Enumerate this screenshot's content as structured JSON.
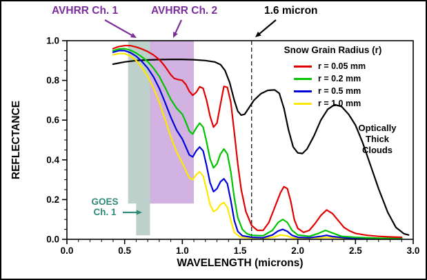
{
  "figure": {
    "background": "#ffffff",
    "border_color": "#000000"
  },
  "annotations": {
    "avhrr_ch1": {
      "label": "AVHRR Ch. 1",
      "color": "#7b2d9b"
    },
    "avhrr_ch2": {
      "label": "AVHRR Ch. 2",
      "color": "#7b2d9b"
    },
    "goes_ch1": {
      "line1": "GOES",
      "line2": "Ch. 1",
      "color": "#2f8a78"
    },
    "clouds": {
      "line1": "Optically",
      "line2": "Thick",
      "line3": "Clouds",
      "color": "#000000"
    }
  },
  "legend": {
    "title": "Snow Grain Radius (r)",
    "position": "upper right",
    "entries": [
      {
        "label": "r = 0.05 mm",
        "color": "#e10000"
      },
      {
        "label": "r = 0.2 mm",
        "color": "#00c400"
      },
      {
        "label": "r = 0.5 mm",
        "color": "#0000d8"
      },
      {
        "label": "r = 1.0 mm",
        "color": "#ffe800"
      }
    ]
  },
  "chart_data": {
    "type": "line",
    "title": "",
    "xlabel": "WAVELENGTH (microns)",
    "ylabel": "REFLECTANCE",
    "xlim": [
      0.0,
      3.0
    ],
    "ylim": [
      0.0,
      1.0
    ],
    "grid": false,
    "x_ticks": [
      "0.0",
      "0.5",
      "1.0",
      "1.5",
      "2.0",
      "2.5",
      "3.0"
    ],
    "y_ticks": [
      "0.0",
      "0.2",
      "0.4",
      "0.6",
      "0.8",
      "1.0"
    ],
    "reference_line": {
      "x": 1.6,
      "style": "dashed",
      "label": "1.6 micron"
    },
    "bands": [
      {
        "data_name": "avhrr-ch1-goes-ch1-band",
        "x0": 0.53,
        "x1": 0.72,
        "y0": 0.18,
        "y1": 1.0,
        "color": "#447766",
        "opacity": 0.35
      },
      {
        "data_name": "goes-ch1-band-extension",
        "x0": 0.6,
        "x1": 0.72,
        "y0": 0.02,
        "y1": 0.18,
        "color": "#447766",
        "opacity": 0.35
      },
      {
        "data_name": "avhrr-ch2-band",
        "x0": 0.72,
        "x1": 1.1,
        "y0": 0.18,
        "y1": 1.0,
        "color": "#9955bb",
        "opacity": 0.45
      }
    ],
    "series": [
      {
        "id": "r-0-05mm",
        "name": "r = 0.05 mm",
        "color": "#e10000",
        "points": [
          [
            0.4,
            0.96
          ],
          [
            0.45,
            0.97
          ],
          [
            0.5,
            0.975
          ],
          [
            0.55,
            0.975
          ],
          [
            0.6,
            0.968
          ],
          [
            0.65,
            0.958
          ],
          [
            0.7,
            0.945
          ],
          [
            0.75,
            0.928
          ],
          [
            0.8,
            0.905
          ],
          [
            0.83,
            0.885
          ],
          [
            0.86,
            0.862
          ],
          [
            0.9,
            0.828
          ],
          [
            0.93,
            0.81
          ],
          [
            0.96,
            0.805
          ],
          [
            1.0,
            0.8
          ],
          [
            1.03,
            0.78
          ],
          [
            1.06,
            0.745
          ],
          [
            1.09,
            0.725
          ],
          [
            1.12,
            0.74
          ],
          [
            1.15,
            0.768
          ],
          [
            1.18,
            0.76
          ],
          [
            1.21,
            0.7
          ],
          [
            1.24,
            0.62
          ],
          [
            1.27,
            0.565
          ],
          [
            1.3,
            0.585
          ],
          [
            1.33,
            0.68
          ],
          [
            1.36,
            0.77
          ],
          [
            1.39,
            0.765
          ],
          [
            1.42,
            0.69
          ],
          [
            1.45,
            0.54
          ],
          [
            1.48,
            0.38
          ],
          [
            1.51,
            0.25
          ],
          [
            1.55,
            0.14
          ],
          [
            1.6,
            0.07
          ],
          [
            1.65,
            0.045
          ],
          [
            1.7,
            0.045
          ],
          [
            1.75,
            0.085
          ],
          [
            1.8,
            0.16
          ],
          [
            1.85,
            0.235
          ],
          [
            1.88,
            0.265
          ],
          [
            1.91,
            0.255
          ],
          [
            1.94,
            0.19
          ],
          [
            1.97,
            0.1
          ],
          [
            2.0,
            0.055
          ],
          [
            2.05,
            0.035
          ],
          [
            2.1,
            0.045
          ],
          [
            2.15,
            0.08
          ],
          [
            2.2,
            0.12
          ],
          [
            2.25,
            0.148
          ],
          [
            2.3,
            0.13
          ],
          [
            2.35,
            0.095
          ],
          [
            2.4,
            0.06
          ],
          [
            2.45,
            0.042
          ],
          [
            2.5,
            0.03
          ],
          [
            2.6,
            0.02
          ],
          [
            2.7,
            0.015
          ],
          [
            2.8,
            0.012
          ],
          [
            2.9,
            0.01
          ]
        ]
      },
      {
        "id": "r-0-2mm",
        "name": "r = 0.2 mm",
        "color": "#00c400",
        "points": [
          [
            0.4,
            0.95
          ],
          [
            0.45,
            0.958
          ],
          [
            0.5,
            0.96
          ],
          [
            0.55,
            0.952
          ],
          [
            0.6,
            0.938
          ],
          [
            0.65,
            0.918
          ],
          [
            0.7,
            0.895
          ],
          [
            0.75,
            0.862
          ],
          [
            0.8,
            0.82
          ],
          [
            0.85,
            0.765
          ],
          [
            0.9,
            0.705
          ],
          [
            0.95,
            0.66
          ],
          [
            1.0,
            0.63
          ],
          [
            1.03,
            0.59
          ],
          [
            1.06,
            0.545
          ],
          [
            1.09,
            0.53
          ],
          [
            1.12,
            0.56
          ],
          [
            1.15,
            0.585
          ],
          [
            1.18,
            0.565
          ],
          [
            1.21,
            0.49
          ],
          [
            1.24,
            0.405
          ],
          [
            1.27,
            0.36
          ],
          [
            1.3,
            0.38
          ],
          [
            1.33,
            0.43
          ],
          [
            1.36,
            0.455
          ],
          [
            1.39,
            0.43
          ],
          [
            1.42,
            0.34
          ],
          [
            1.45,
            0.21
          ],
          [
            1.48,
            0.11
          ],
          [
            1.52,
            0.05
          ],
          [
            1.56,
            0.028
          ],
          [
            1.6,
            0.02
          ],
          [
            1.7,
            0.018
          ],
          [
            1.78,
            0.045
          ],
          [
            1.83,
            0.085
          ],
          [
            1.87,
            0.1
          ],
          [
            1.91,
            0.085
          ],
          [
            1.95,
            0.045
          ],
          [
            2.0,
            0.022
          ],
          [
            2.1,
            0.015
          ],
          [
            2.18,
            0.03
          ],
          [
            2.24,
            0.045
          ],
          [
            2.3,
            0.032
          ],
          [
            2.38,
            0.015
          ],
          [
            2.5,
            0.01
          ],
          [
            2.7,
            0.006
          ],
          [
            2.9,
            0.005
          ]
        ]
      },
      {
        "id": "r-0-5mm",
        "name": "r = 0.5 mm",
        "color": "#0000d8",
        "points": [
          [
            0.4,
            0.942
          ],
          [
            0.45,
            0.95
          ],
          [
            0.5,
            0.95
          ],
          [
            0.55,
            0.94
          ],
          [
            0.6,
            0.922
          ],
          [
            0.65,
            0.895
          ],
          [
            0.7,
            0.862
          ],
          [
            0.75,
            0.818
          ],
          [
            0.8,
            0.76
          ],
          [
            0.85,
            0.69
          ],
          [
            0.9,
            0.615
          ],
          [
            0.95,
            0.55
          ],
          [
            1.0,
            0.505
          ],
          [
            1.03,
            0.465
          ],
          [
            1.06,
            0.425
          ],
          [
            1.09,
            0.415
          ],
          [
            1.12,
            0.445
          ],
          [
            1.15,
            0.465
          ],
          [
            1.18,
            0.445
          ],
          [
            1.21,
            0.37
          ],
          [
            1.24,
            0.285
          ],
          [
            1.27,
            0.24
          ],
          [
            1.3,
            0.255
          ],
          [
            1.33,
            0.29
          ],
          [
            1.36,
            0.305
          ],
          [
            1.39,
            0.28
          ],
          [
            1.42,
            0.195
          ],
          [
            1.45,
            0.095
          ],
          [
            1.48,
            0.04
          ],
          [
            1.52,
            0.018
          ],
          [
            1.6,
            0.01
          ],
          [
            1.7,
            0.008
          ],
          [
            1.78,
            0.022
          ],
          [
            1.83,
            0.042
          ],
          [
            1.87,
            0.05
          ],
          [
            1.91,
            0.04
          ],
          [
            1.95,
            0.02
          ],
          [
            2.0,
            0.01
          ],
          [
            2.1,
            0.008
          ],
          [
            2.2,
            0.015
          ],
          [
            2.25,
            0.02
          ],
          [
            2.3,
            0.014
          ],
          [
            2.4,
            0.008
          ],
          [
            2.5,
            0.005
          ],
          [
            2.7,
            0.004
          ],
          [
            2.9,
            0.003
          ]
        ]
      },
      {
        "id": "r-1-0mm",
        "name": "r = 1.0 mm",
        "color": "#ffe800",
        "points": [
          [
            0.4,
            0.928
          ],
          [
            0.45,
            0.935
          ],
          [
            0.5,
            0.935
          ],
          [
            0.55,
            0.922
          ],
          [
            0.6,
            0.9
          ],
          [
            0.65,
            0.865
          ],
          [
            0.7,
            0.82
          ],
          [
            0.75,
            0.762
          ],
          [
            0.8,
            0.69
          ],
          [
            0.85,
            0.605
          ],
          [
            0.9,
            0.515
          ],
          [
            0.95,
            0.44
          ],
          [
            1.0,
            0.385
          ],
          [
            1.03,
            0.345
          ],
          [
            1.06,
            0.31
          ],
          [
            1.09,
            0.3
          ],
          [
            1.12,
            0.325
          ],
          [
            1.15,
            0.34
          ],
          [
            1.18,
            0.32
          ],
          [
            1.21,
            0.25
          ],
          [
            1.24,
            0.175
          ],
          [
            1.27,
            0.14
          ],
          [
            1.3,
            0.15
          ],
          [
            1.33,
            0.175
          ],
          [
            1.36,
            0.185
          ],
          [
            1.39,
            0.16
          ],
          [
            1.42,
            0.095
          ],
          [
            1.45,
            0.035
          ],
          [
            1.5,
            0.012
          ],
          [
            1.6,
            0.006
          ],
          [
            1.7,
            0.005
          ],
          [
            1.8,
            0.012
          ],
          [
            1.85,
            0.022
          ],
          [
            1.9,
            0.018
          ],
          [
            1.95,
            0.008
          ],
          [
            2.0,
            0.005
          ],
          [
            2.2,
            0.008
          ],
          [
            2.25,
            0.01
          ],
          [
            2.3,
            0.008
          ],
          [
            2.5,
            0.004
          ],
          [
            2.9,
            0.003
          ]
        ]
      },
      {
        "id": "optically-thick-clouds",
        "name": "Optically Thick Clouds",
        "color": "#000000",
        "points": [
          [
            0.4,
            0.882
          ],
          [
            0.5,
            0.893
          ],
          [
            0.6,
            0.9
          ],
          [
            0.7,
            0.903
          ],
          [
            0.8,
            0.905
          ],
          [
            0.9,
            0.906
          ],
          [
            1.0,
            0.906
          ],
          [
            1.1,
            0.904
          ],
          [
            1.2,
            0.9
          ],
          [
            1.28,
            0.893
          ],
          [
            1.33,
            0.88
          ],
          [
            1.37,
            0.85
          ],
          [
            1.41,
            0.79
          ],
          [
            1.45,
            0.7
          ],
          [
            1.48,
            0.645
          ],
          [
            1.51,
            0.625
          ],
          [
            1.54,
            0.63
          ],
          [
            1.58,
            0.665
          ],
          [
            1.62,
            0.7
          ],
          [
            1.68,
            0.733
          ],
          [
            1.74,
            0.75
          ],
          [
            1.8,
            0.752
          ],
          [
            1.84,
            0.735
          ],
          [
            1.88,
            0.66
          ],
          [
            1.92,
            0.55
          ],
          [
            1.96,
            0.465
          ],
          [
            2.0,
            0.435
          ],
          [
            2.04,
            0.432
          ],
          [
            2.08,
            0.455
          ],
          [
            2.14,
            0.52
          ],
          [
            2.2,
            0.6
          ],
          [
            2.26,
            0.655
          ],
          [
            2.32,
            0.678
          ],
          [
            2.38,
            0.668
          ],
          [
            2.44,
            0.63
          ],
          [
            2.5,
            0.575
          ],
          [
            2.56,
            0.49
          ],
          [
            2.62,
            0.39
          ],
          [
            2.7,
            0.255
          ],
          [
            2.78,
            0.135
          ],
          [
            2.85,
            0.06
          ],
          [
            2.92,
            0.028
          ],
          [
            2.96,
            0.022
          ]
        ]
      }
    ]
  }
}
